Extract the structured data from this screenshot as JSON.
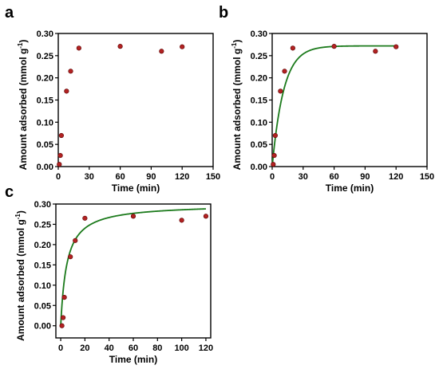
{
  "chart_data": [
    {
      "panel": "a",
      "type": "scatter",
      "xlabel": "Time (min)",
      "ylabel": "Amount adsorbed (mmol g",
      "ylabel_superscript": "-1",
      "ylabel_close": ")",
      "xlim": [
        0,
        150
      ],
      "ylim": [
        0,
        0.3
      ],
      "xticks": [
        0,
        30,
        60,
        90,
        120,
        150
      ],
      "yticks": [
        0.0,
        0.05,
        0.1,
        0.15,
        0.2,
        0.25,
        0.3
      ],
      "series": [
        {
          "points": [
            [
              1,
              0.005
            ],
            [
              2,
              0.025
            ],
            [
              3,
              0.07
            ],
            [
              8,
              0.17
            ],
            [
              12,
              0.215
            ],
            [
              20,
              0.267
            ],
            [
              60,
              0.271
            ],
            [
              100,
              0.26
            ],
            [
              120,
              0.27
            ]
          ]
        }
      ]
    },
    {
      "panel": "b",
      "type": "scatter",
      "xlabel": "Time (min)",
      "ylabel": "Amount adsorbed (mmol g",
      "ylabel_superscript": "-1",
      "ylabel_close": ")",
      "xlim": [
        0,
        150
      ],
      "ylim": [
        0,
        0.3
      ],
      "xticks": [
        0,
        30,
        60,
        90,
        120,
        150
      ],
      "yticks": [
        0.0,
        0.05,
        0.1,
        0.15,
        0.2,
        0.25,
        0.3
      ],
      "series": [
        {
          "points": [
            [
              1,
              0.005
            ],
            [
              2,
              0.025
            ],
            [
              3,
              0.07
            ],
            [
              8,
              0.17
            ],
            [
              12,
              0.215
            ],
            [
              20,
              0.267
            ],
            [
              60,
              0.271
            ],
            [
              100,
              0.26
            ],
            [
              120,
              0.27
            ]
          ]
        },
        {
          "curve": "pseudo-first-order",
          "qe": 0.272,
          "k": 0.09,
          "range": [
            0,
            120
          ]
        }
      ]
    },
    {
      "panel": "c",
      "type": "scatter",
      "xlabel": "Time (min)",
      "ylabel": "Amount adsorbed (mmol g",
      "ylabel_superscript": "-1",
      "ylabel_close": ")",
      "xlim": [
        -4,
        124
      ],
      "ylim": [
        -0.03,
        0.3
      ],
      "xticks": [
        0,
        20,
        40,
        60,
        80,
        100,
        120
      ],
      "yticks": [
        0.0,
        0.05,
        0.1,
        0.15,
        0.2,
        0.25,
        0.3
      ],
      "series": [
        {
          "points": [
            [
              1,
              0.0
            ],
            [
              2,
              0.02
            ],
            [
              3,
              0.07
            ],
            [
              8,
              0.17
            ],
            [
              12,
              0.21
            ],
            [
              20,
              0.265
            ],
            [
              60,
              0.27
            ],
            [
              100,
              0.26
            ],
            [
              120,
              0.27
            ]
          ]
        },
        {
          "curve": "pseudo-second-order",
          "qe": 0.3,
          "k": 0.67,
          "range": [
            0,
            120
          ]
        }
      ]
    }
  ],
  "panel_letters": [
    "a",
    "b",
    "c"
  ]
}
